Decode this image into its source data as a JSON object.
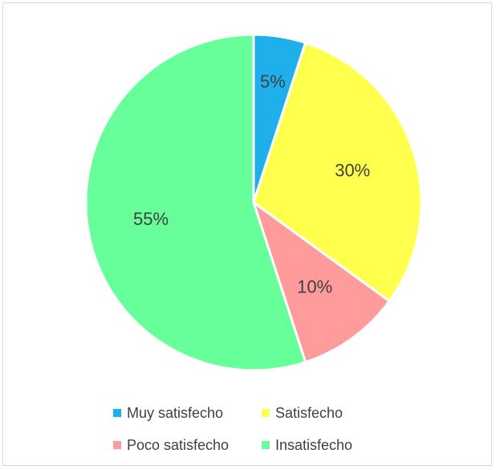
{
  "chart_data": {
    "type": "pie",
    "title": "",
    "start_angle_deg": 0,
    "direction": "clockwise",
    "legend_position": "bottom",
    "slices": [
      {
        "name": "Muy satisfecho",
        "value": 5,
        "label": "5%",
        "color": "#1fb0ec"
      },
      {
        "name": "Satisfecho",
        "value": 30,
        "label": "30%",
        "color": "#ffff4d"
      },
      {
        "name": "Poco satisfecho",
        "value": 10,
        "label": "10%",
        "color": "#ff9b9b"
      },
      {
        "name": "Insatisfecho",
        "value": 55,
        "label": "55%",
        "color": "#66ff99"
      }
    ]
  }
}
